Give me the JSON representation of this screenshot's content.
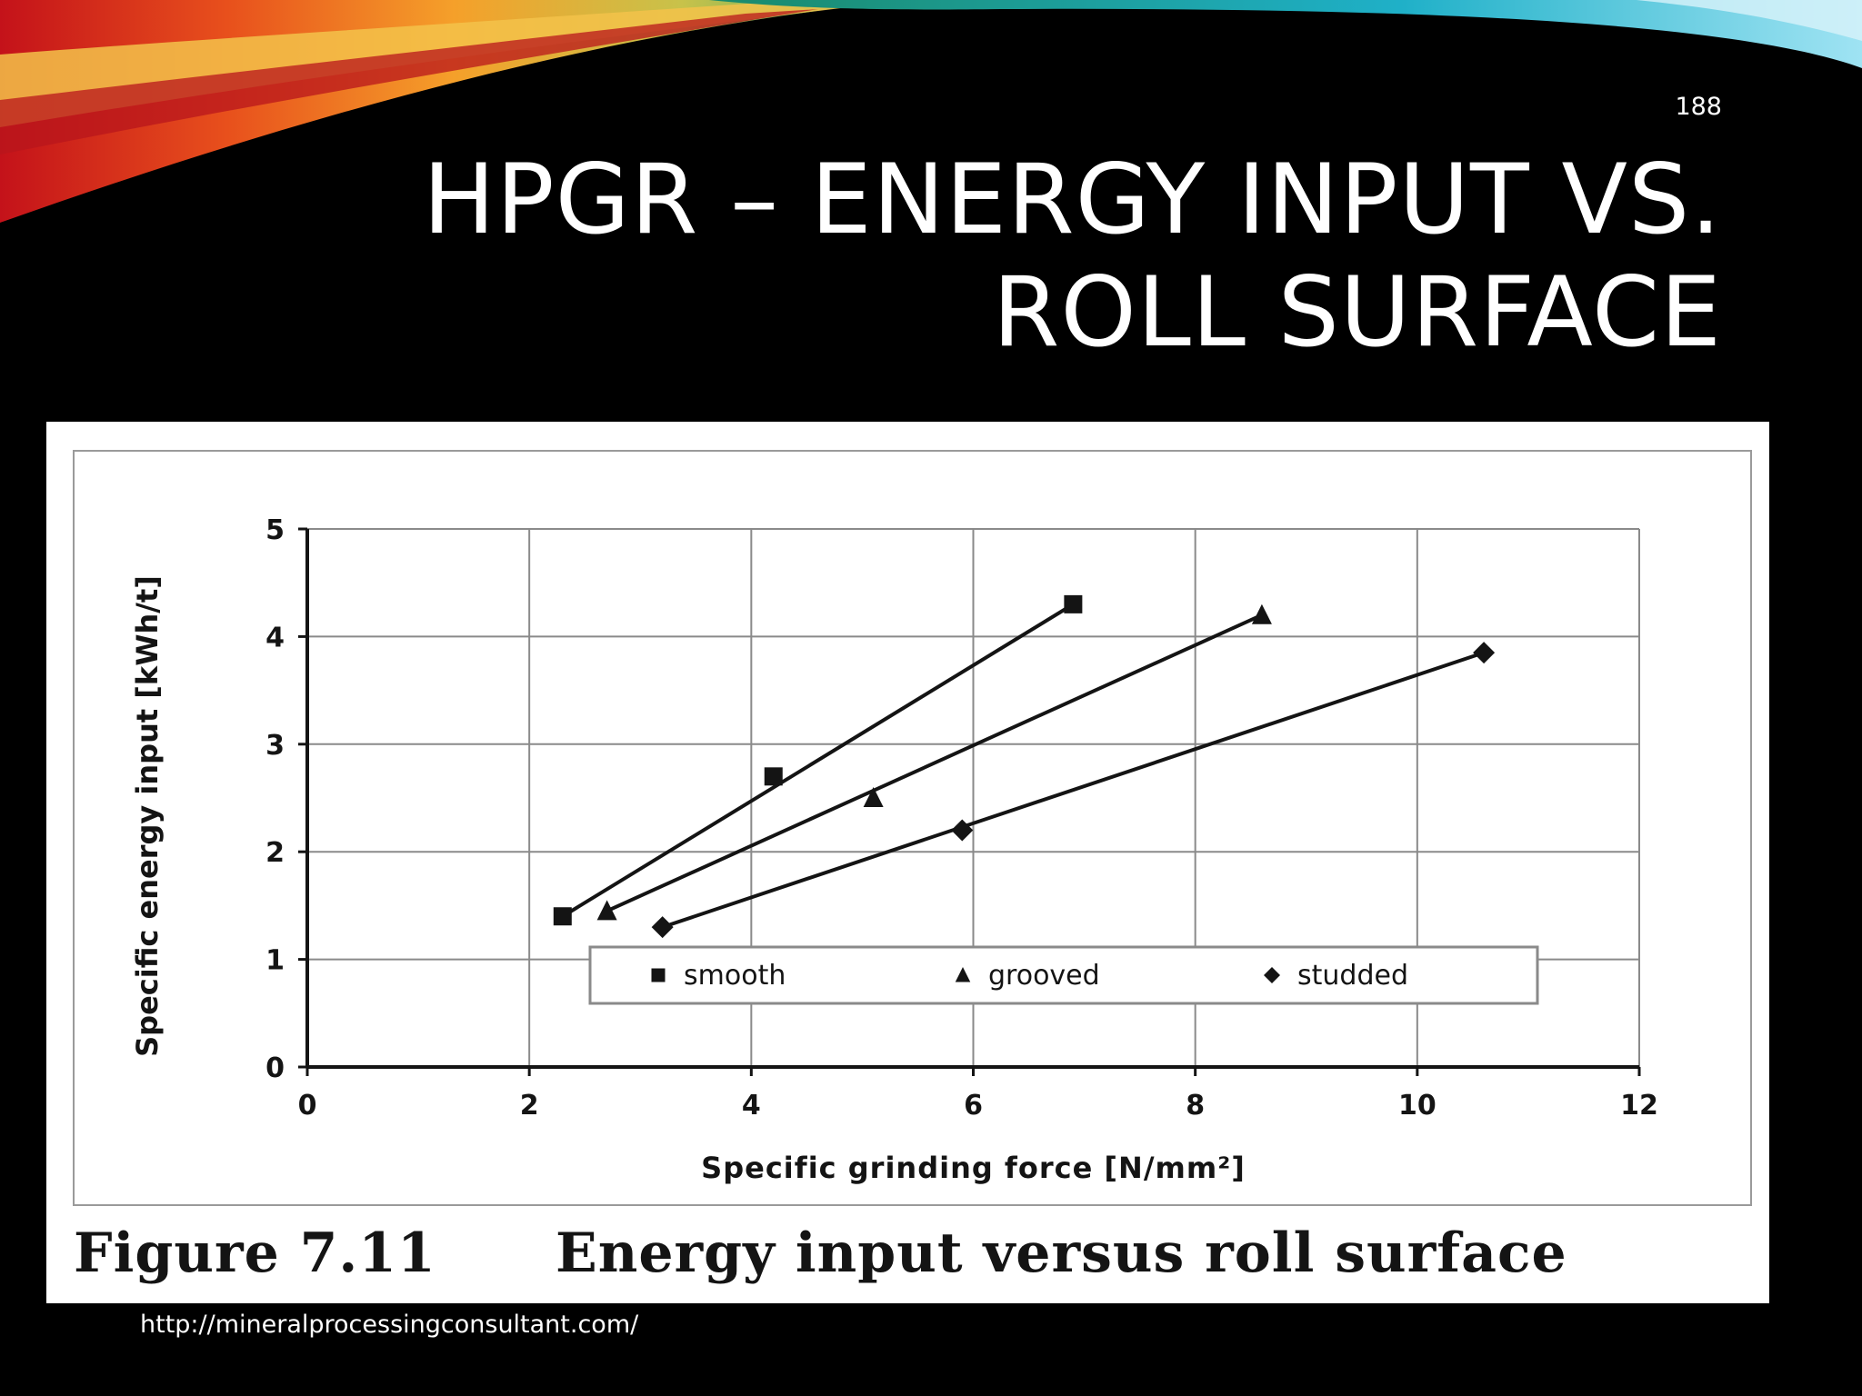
{
  "slide": {
    "number": "188",
    "title_lines": [
      "HPGR – ENERGY INPUT VS.",
      "ROLL SURFACE"
    ],
    "source_url": "http://mineralprocessingconsultant.com/"
  },
  "figure": {
    "caption_number": "Figure 7.11",
    "caption_text": "Energy input versus roll surface"
  },
  "colors": {
    "background": "#000000",
    "panel": "#ffffff",
    "ink": "#141414",
    "grid": "#8a8a8a"
  },
  "chart_data": {
    "type": "line",
    "xlabel": "Specific grinding force [N/mm²]",
    "ylabel": "Specific energy input [kWh/t]",
    "xlim": [
      0,
      12
    ],
    "ylim": [
      0,
      5
    ],
    "xticks": [
      "0",
      "2",
      "4",
      "6",
      "8",
      "10",
      "12"
    ],
    "yticks": [
      "0",
      "1",
      "2",
      "3",
      "4",
      "5"
    ],
    "grid": true,
    "legend_position": "bottom-right inside plot",
    "series": [
      {
        "name": "smooth",
        "marker": "square",
        "points": [
          {
            "x": 2.3,
            "y": 1.4
          },
          {
            "x": 4.2,
            "y": 2.7
          },
          {
            "x": 6.9,
            "y": 4.3
          }
        ]
      },
      {
        "name": "grooved",
        "marker": "triangle",
        "points": [
          {
            "x": 2.7,
            "y": 1.45
          },
          {
            "x": 5.1,
            "y": 2.5
          },
          {
            "x": 8.6,
            "y": 4.2
          }
        ]
      },
      {
        "name": "studded",
        "marker": "diamond",
        "points": [
          {
            "x": 3.2,
            "y": 1.3
          },
          {
            "x": 5.9,
            "y": 2.2
          },
          {
            "x": 10.6,
            "y": 3.85
          }
        ]
      }
    ]
  }
}
